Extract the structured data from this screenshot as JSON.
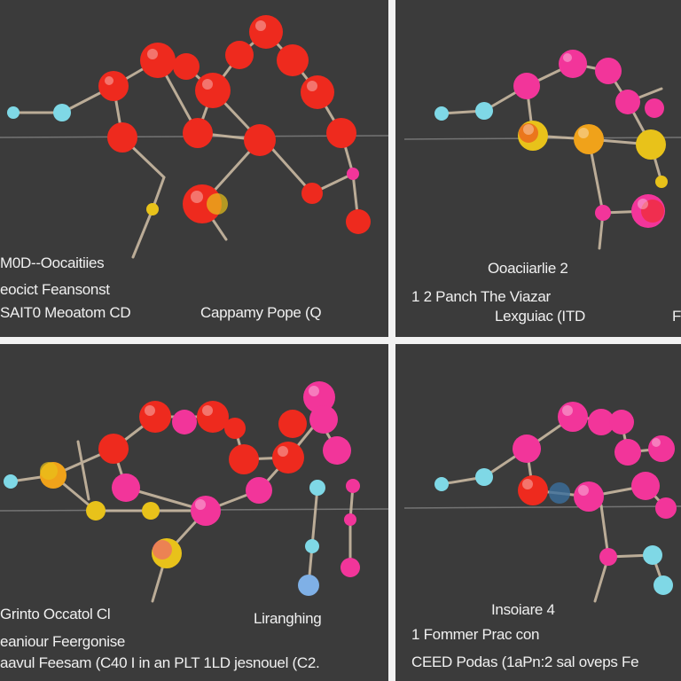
{
  "panels": [
    {
      "id": "top-left",
      "labels": [
        "M0D--Oocaitiies",
        "eocict Feansonst",
        "SAIT0 Meoatom CD",
        "Cappamy Pope (Q"
      ]
    },
    {
      "id": "top-right",
      "labels": [
        "Ooaciiarlie 2",
        "1 2 Panch The Viazar",
        "Lexguiac (ITD",
        "F"
      ]
    },
    {
      "id": "bottom-left",
      "labels": [
        "Grinto Occatol Cl",
        "Liranghing",
        "eaniour Feergonise",
        "aavul Feesam (C40 I in an PLT 1LD jesnouel (C2."
      ]
    },
    {
      "id": "bottom-right",
      "labels": [
        "Insoiare 4",
        "1 Fommer Prac con",
        "CEED Podas (1aPn:2 sal oveps Fe"
      ]
    }
  ],
  "colors": {
    "panel_bg": "#3b3b3b",
    "frame": "#f2f2f2",
    "atom_red": "#ee2a1e",
    "atom_pink": "#f2359a",
    "atom_cyan": "#7fd8e6",
    "atom_yellow": "#e8c21a",
    "bond": "#c9b9a2"
  }
}
